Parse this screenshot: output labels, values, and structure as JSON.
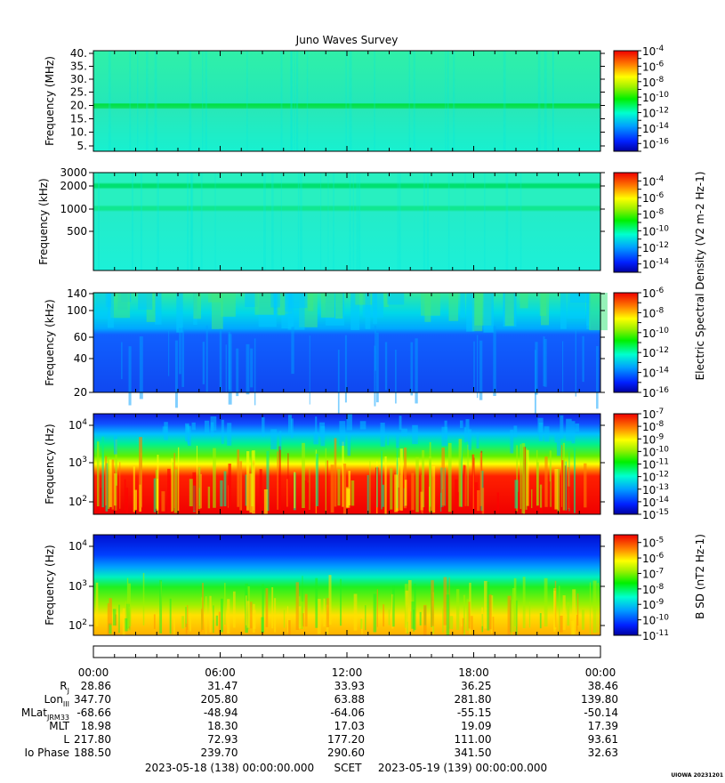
{
  "title": "Juno Waves Survey",
  "chart_data": {
    "type": "heatmap",
    "title": "Juno Waves Survey",
    "panels": [
      {
        "id": "p1",
        "ylabel": "Frequency (MHz)",
        "yticks": [
          "40.",
          "35.",
          "30.",
          "25.",
          "20.",
          "15.",
          "10.",
          "5."
        ],
        "colorbar_ticks": [
          "10^-4",
          "10^-6",
          "10^-8",
          "10^-10",
          "10^-12",
          "10^-14",
          "10^-16"
        ],
        "colorbar_range_exp": [
          -17,
          -4
        ],
        "log_scale": false,
        "features": "uniform cyan background (~10^-13) with bright green band near 21 MHz"
      },
      {
        "id": "p2",
        "ylabel": "Frequency (kHz)",
        "yticks": [
          "3000",
          "2000",
          "1000",
          "500"
        ],
        "colorbar_ticks": [
          "10^-4",
          "10^-6",
          "10^-8",
          "10^-10",
          "10^-12",
          "10^-14"
        ],
        "colorbar_range_exp": [
          -15,
          -3
        ],
        "log_scale": true,
        "features": "uniform cyan background with green bands near 2000 and 1000 kHz"
      },
      {
        "id": "p3",
        "ylabel": "Frequency (kHz)",
        "yticks": [
          "140",
          "100",
          "60",
          "40",
          "20"
        ],
        "colorbar_ticks": [
          "10^-6",
          "10^-8",
          "10^-10",
          "10^-12",
          "10^-14",
          "10^-16"
        ],
        "colorbar_range_exp": [
          -16,
          -6
        ],
        "log_scale": true,
        "features": "blue low-intensity region below ~60 kHz, green/cyan above"
      },
      {
        "id": "p4",
        "ylabel": "Frequency (Hz)",
        "yticks": [
          "10^4",
          "10^3",
          "10^2"
        ],
        "colorbar_ticks": [
          "10^-7",
          "10^-8",
          "10^-9",
          "10^-10",
          "10^-11",
          "10^-12",
          "10^-13",
          "10^-14",
          "10^-15"
        ],
        "colorbar_range_exp": [
          -15,
          -7
        ],
        "log_scale": true,
        "features": "red intense emission below ~1 kHz, green/cyan mid, blue above 10 kHz"
      }
    ],
    "electric_colorbar_label": "Electric Spectral Density (V^2 m^-2 Hz^-1)",
    "magnetic_panel": {
      "id": "p5",
      "ylabel": "Frequency (Hz)",
      "yticks": [
        "10^4",
        "10^3",
        "10^2"
      ],
      "colorbar_ticks": [
        "10^-5",
        "10^-6",
        "10^-7",
        "10^-8",
        "10^-9",
        "10^-10",
        "10^-11"
      ],
      "colorbar_range_exp": [
        -11,
        -4.5
      ],
      "log_scale": true,
      "colorbar_label": "B SD (nT^2 Hz^-1)",
      "features": "dark blue above ~5 kHz, green mid, yellow/orange below ~200 Hz"
    },
    "x_axis": {
      "time_ticks": [
        "00:00",
        "06:00",
        "12:00",
        "18:00",
        "00:00"
      ],
      "ephemeris": [
        {
          "label": "R",
          "sub": "J",
          "values": [
            "28.86",
            "31.47",
            "33.93",
            "36.25",
            "38.46"
          ]
        },
        {
          "label": "Lon",
          "sub": "III",
          "values": [
            "347.70",
            "205.80",
            "63.88",
            "281.80",
            "139.80"
          ]
        },
        {
          "label": "MLat",
          "sub": "JRM33",
          "values": [
            "-68.66",
            "-48.94",
            "-64.06",
            "-55.15",
            "-50.14"
          ]
        },
        {
          "label": "MLT",
          "sub": "",
          "values": [
            "18.98",
            "18.30",
            "17.03",
            "19.09",
            "17.39"
          ]
        },
        {
          "label": "L",
          "sub": "",
          "values": [
            "217.80",
            "72.93",
            "177.20",
            "111.00",
            "93.61"
          ]
        },
        {
          "label": "Io Phase",
          "sub": "",
          "values": [
            "188.50",
            "239.70",
            "290.60",
            "341.50",
            "32.63"
          ]
        }
      ],
      "start": "2023-05-18 (138) 00:00:00.000",
      "scet": "SCET",
      "end": "2023-05-19 (139) 00:00:00.000"
    },
    "stamp": "UIOWA 20231201"
  }
}
